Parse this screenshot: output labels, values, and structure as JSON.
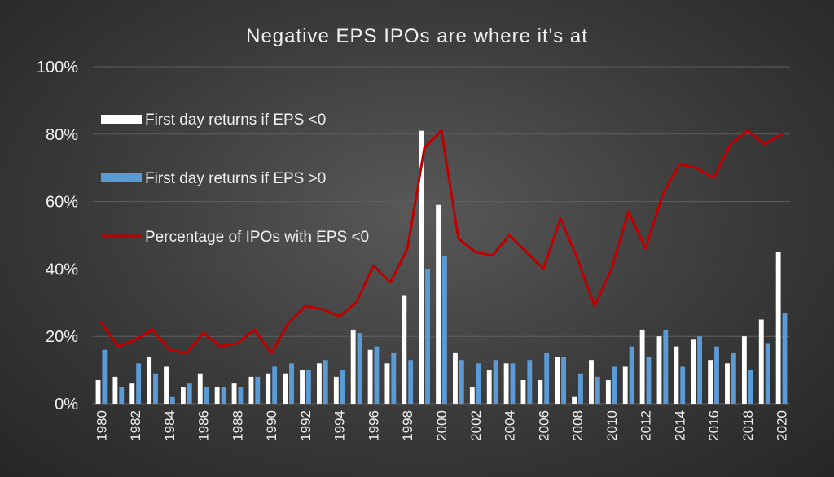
{
  "chart_data": {
    "type": "bar",
    "title": "Negative EPS IPOs are where it's at",
    "xlabel": "",
    "ylabel": "",
    "ylim": [
      0,
      100
    ],
    "y_ticks": [
      "0%",
      "20%",
      "40%",
      "60%",
      "80%",
      "100%"
    ],
    "grid": true,
    "legend_position": "top-left",
    "x": [
      1980,
      1981,
      1982,
      1983,
      1984,
      1985,
      1986,
      1987,
      1988,
      1989,
      1990,
      1991,
      1992,
      1993,
      1994,
      1995,
      1996,
      1997,
      1998,
      1999,
      2000,
      2001,
      2002,
      2003,
      2004,
      2005,
      2006,
      2007,
      2008,
      2009,
      2010,
      2011,
      2012,
      2013,
      2014,
      2015,
      2016,
      2017,
      2018,
      2019,
      2020
    ],
    "x_tick_labels": [
      "1980",
      "1982",
      "1984",
      "1986",
      "1988",
      "1990",
      "1992",
      "1994",
      "1996",
      "1998",
      "2000",
      "2002",
      "2004",
      "2006",
      "2008",
      "2010",
      "2012",
      "2014",
      "2016",
      "2018",
      "2020"
    ],
    "series": [
      {
        "name": "First day returns if EPS <0",
        "kind": "bar",
        "color": "#ffffff",
        "values": [
          7,
          8,
          6,
          14,
          11,
          5,
          9,
          5,
          6,
          8,
          9,
          9,
          10,
          12,
          8,
          22,
          16,
          12,
          32,
          81,
          59,
          15,
          5,
          10,
          12,
          7,
          7,
          14,
          2,
          13,
          7,
          11,
          22,
          20,
          17,
          19,
          13,
          12,
          20,
          25,
          45
        ]
      },
      {
        "name": "First day returns if EPS >0",
        "kind": "bar",
        "color": "#5b9bd5",
        "values": [
          16,
          5,
          12,
          9,
          2,
          6,
          5,
          5,
          5,
          8,
          11,
          12,
          10,
          13,
          10,
          21,
          17,
          15,
          13,
          40,
          44,
          13,
          12,
          13,
          12,
          13,
          15,
          14,
          9,
          8,
          11,
          17,
          14,
          22,
          11,
          20,
          17,
          15,
          10,
          18,
          27
        ]
      },
      {
        "name": "Percentage of IPOs with EPS <0",
        "kind": "line",
        "color": "#c00000",
        "values": [
          24,
          17,
          19,
          22,
          16,
          15,
          21,
          17,
          18,
          22,
          15,
          24,
          29,
          28,
          26,
          30,
          41,
          36,
          46,
          76,
          81,
          49,
          45,
          44,
          50,
          45,
          40,
          55,
          43,
          29,
          40,
          57,
          46,
          62,
          71,
          70,
          67,
          77,
          81,
          77,
          80
        ]
      }
    ]
  }
}
